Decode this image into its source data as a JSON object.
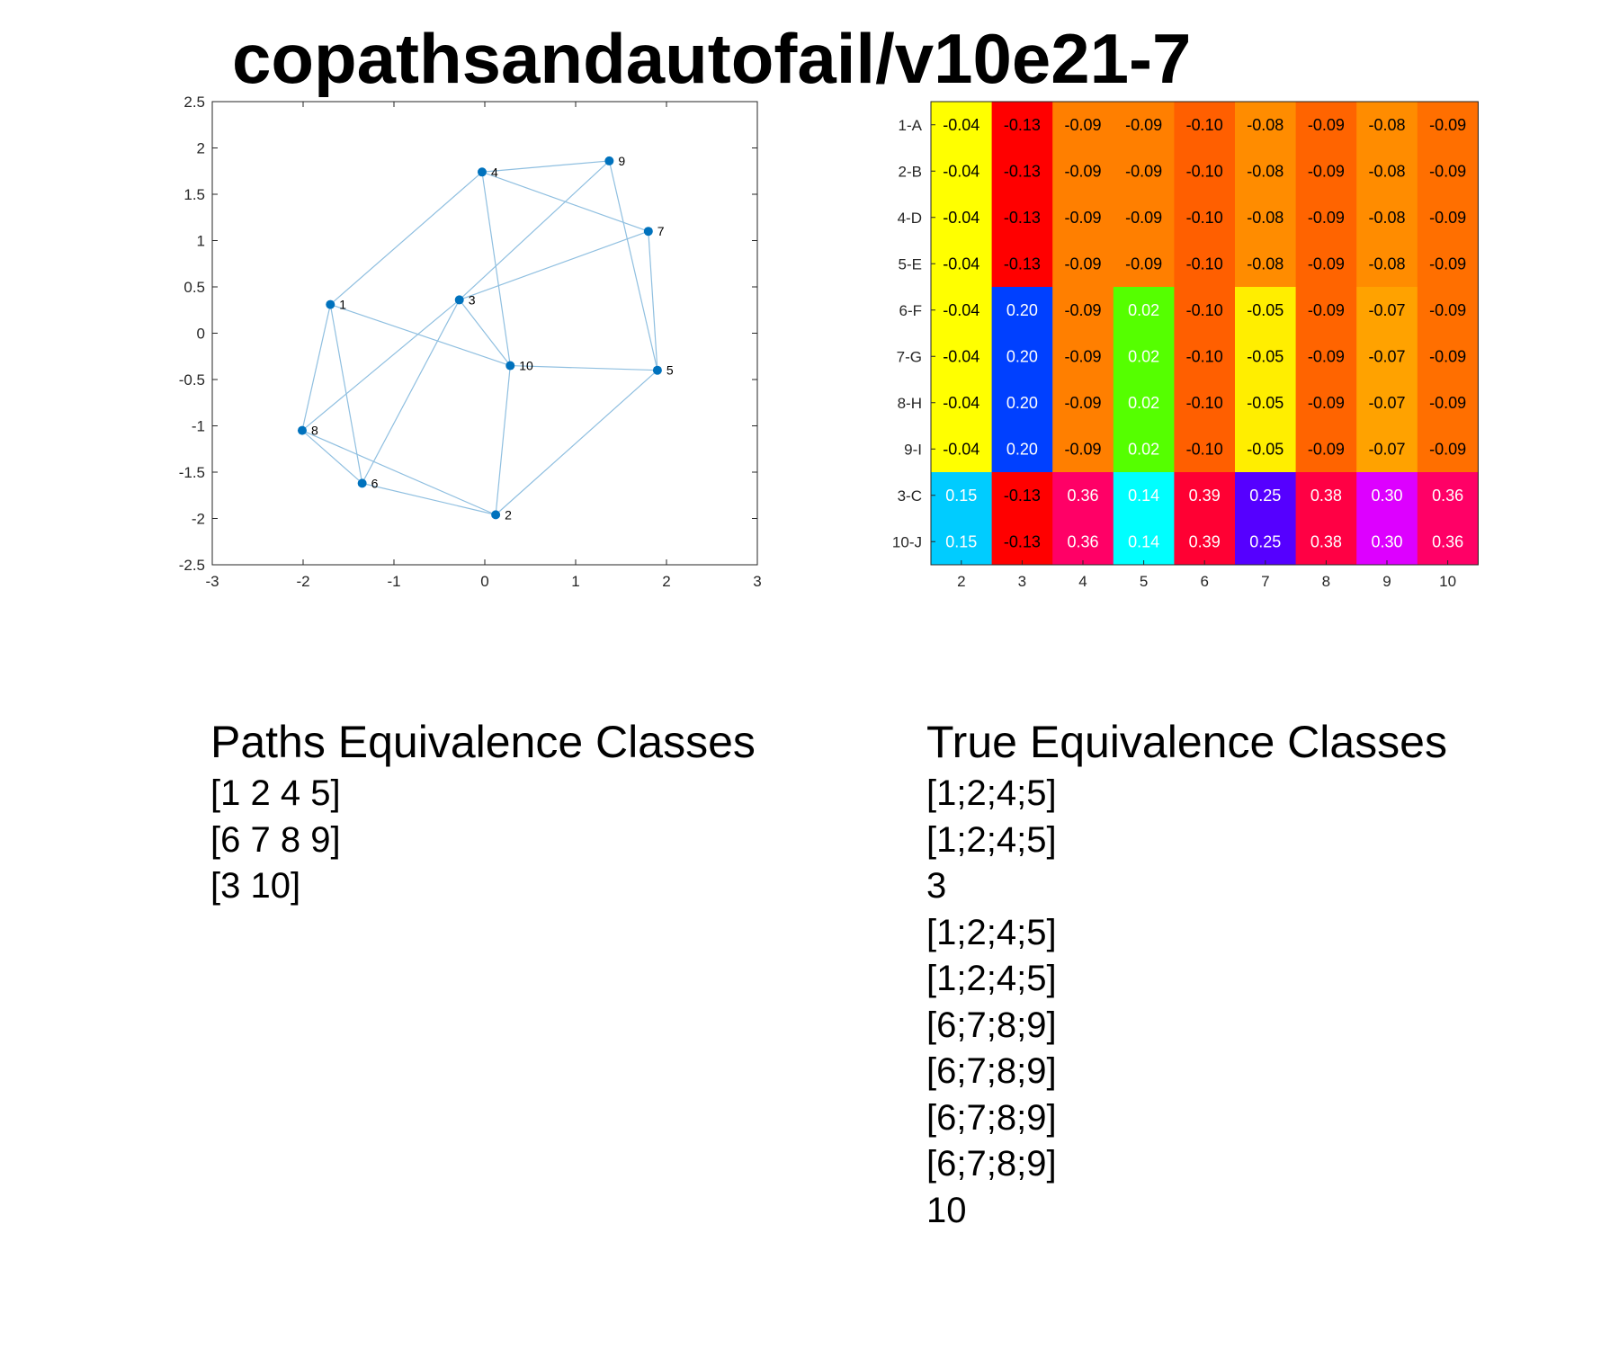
{
  "title": "copathsandautofail/v10e21-7",
  "chart_data": [
    {
      "type": "scatter",
      "subtype": "graph",
      "xlim": [
        -3,
        3
      ],
      "ylim": [
        -2.5,
        2.5
      ],
      "x_ticks": [
        "-3",
        "-2",
        "-1",
        "0",
        "1",
        "2",
        "3"
      ],
      "y_ticks": [
        "2.5",
        "2",
        "1.5",
        "1",
        "0.5",
        "0",
        "-0.5",
        "-1",
        "-1.5",
        "-2",
        "-2.5"
      ],
      "node_color": "#0072bd",
      "edge_color": "#8fbfe0",
      "nodes": [
        {
          "id": "1",
          "x": -1.7,
          "y": 0.31
        },
        {
          "id": "2",
          "x": 0.12,
          "y": -1.96
        },
        {
          "id": "3",
          "x": -0.28,
          "y": 0.36
        },
        {
          "id": "4",
          "x": -0.03,
          "y": 1.74
        },
        {
          "id": "5",
          "x": 1.9,
          "y": -0.4
        },
        {
          "id": "6",
          "x": -1.35,
          "y": -1.62
        },
        {
          "id": "7",
          "x": 1.8,
          "y": 1.1
        },
        {
          "id": "8",
          "x": -2.01,
          "y": -1.05
        },
        {
          "id": "9",
          "x": 1.37,
          "y": 1.86
        },
        {
          "id": "10",
          "x": 0.28,
          "y": -0.35
        }
      ],
      "edges": [
        [
          "1",
          "4"
        ],
        [
          "1",
          "8"
        ],
        [
          "1",
          "6"
        ],
        [
          "1",
          "10"
        ],
        [
          "4",
          "9"
        ],
        [
          "4",
          "7"
        ],
        [
          "4",
          "10"
        ],
        [
          "9",
          "3"
        ],
        [
          "9",
          "5"
        ],
        [
          "7",
          "3"
        ],
        [
          "7",
          "5"
        ],
        [
          "3",
          "8"
        ],
        [
          "3",
          "6"
        ],
        [
          "3",
          "10"
        ],
        [
          "10",
          "5"
        ],
        [
          "10",
          "2"
        ],
        [
          "8",
          "6"
        ],
        [
          "8",
          "2"
        ],
        [
          "6",
          "2"
        ],
        [
          "2",
          "5"
        ]
      ]
    },
    {
      "type": "heatmap",
      "rows": [
        "1-A",
        "2-B",
        "4-D",
        "5-E",
        "6-F",
        "7-G",
        "8-H",
        "9-I",
        "3-C",
        "10-J"
      ],
      "columns": [
        "2",
        "3",
        "4",
        "5",
        "6",
        "7",
        "8",
        "9",
        "10"
      ],
      "values": [
        [
          "-0.04",
          "-0.13",
          "-0.09",
          "-0.09",
          "-0.10",
          "-0.08",
          "-0.09",
          "-0.08",
          "-0.09"
        ],
        [
          "-0.04",
          "-0.13",
          "-0.09",
          "-0.09",
          "-0.10",
          "-0.08",
          "-0.09",
          "-0.08",
          "-0.09"
        ],
        [
          "-0.04",
          "-0.13",
          "-0.09",
          "-0.09",
          "-0.10",
          "-0.08",
          "-0.09",
          "-0.08",
          "-0.09"
        ],
        [
          "-0.04",
          "-0.13",
          "-0.09",
          "-0.09",
          "-0.10",
          "-0.08",
          "-0.09",
          "-0.08",
          "-0.09"
        ],
        [
          "-0.04",
          "0.20",
          "-0.09",
          "0.02",
          "-0.10",
          "-0.05",
          "-0.09",
          "-0.07",
          "-0.09"
        ],
        [
          "-0.04",
          "0.20",
          "-0.09",
          "0.02",
          "-0.10",
          "-0.05",
          "-0.09",
          "-0.07",
          "-0.09"
        ],
        [
          "-0.04",
          "0.20",
          "-0.09",
          "0.02",
          "-0.10",
          "-0.05",
          "-0.09",
          "-0.07",
          "-0.09"
        ],
        [
          "-0.04",
          "0.20",
          "-0.09",
          "0.02",
          "-0.10",
          "-0.05",
          "-0.09",
          "-0.07",
          "-0.09"
        ],
        [
          "0.15",
          "-0.13",
          "0.36",
          "0.14",
          "0.39",
          "0.25",
          "0.38",
          "0.30",
          "0.36"
        ],
        [
          "0.15",
          "-0.13",
          "0.36",
          "0.14",
          "0.39",
          "0.25",
          "0.38",
          "0.30",
          "0.36"
        ]
      ],
      "colors": [
        [
          "#ffff00",
          "#ff0000",
          "#ff7f00",
          "#ff7f00",
          "#ff5f00",
          "#ff8c00",
          "#ff6400",
          "#ff8c00",
          "#ff6f00"
        ],
        [
          "#ffff00",
          "#ff0000",
          "#ff7f00",
          "#ff7f00",
          "#ff5f00",
          "#ff8c00",
          "#ff6400",
          "#ff8c00",
          "#ff6f00"
        ],
        [
          "#ffff00",
          "#ff0000",
          "#ff7f00",
          "#ff7f00",
          "#ff5f00",
          "#ff8c00",
          "#ff6400",
          "#ff8c00",
          "#ff6f00"
        ],
        [
          "#ffff00",
          "#ff0000",
          "#ff7f00",
          "#ff7f00",
          "#ff5f00",
          "#ff8c00",
          "#ff6400",
          "#ff8c00",
          "#ff6f00"
        ],
        [
          "#ffff00",
          "#0040ff",
          "#ff7f00",
          "#55ff00",
          "#ff5f00",
          "#ffee00",
          "#ff6400",
          "#ffa200",
          "#ff6f00"
        ],
        [
          "#ffff00",
          "#0040ff",
          "#ff7f00",
          "#55ff00",
          "#ff5f00",
          "#ffee00",
          "#ff6400",
          "#ffa200",
          "#ff6f00"
        ],
        [
          "#ffff00",
          "#0040ff",
          "#ff7f00",
          "#55ff00",
          "#ff5f00",
          "#ffee00",
          "#ff6400",
          "#ffa200",
          "#ff6f00"
        ],
        [
          "#ffff00",
          "#0040ff",
          "#ff7f00",
          "#55ff00",
          "#ff5f00",
          "#ffee00",
          "#ff6400",
          "#ffa200",
          "#ff6f00"
        ],
        [
          "#00ccff",
          "#ff0000",
          "#ff0066",
          "#00ffff",
          "#ff0033",
          "#5500ff",
          "#ff0044",
          "#dd00ff",
          "#ff0066"
        ],
        [
          "#00ccff",
          "#ff0000",
          "#ff0066",
          "#00ffff",
          "#ff0033",
          "#5500ff",
          "#ff0044",
          "#dd00ff",
          "#ff0066"
        ]
      ],
      "text_colors": [
        [
          "#000000",
          "#000000",
          "#000000",
          "#000000",
          "#000000",
          "#000000",
          "#000000",
          "#000000",
          "#000000"
        ],
        [
          "#000000",
          "#000000",
          "#000000",
          "#000000",
          "#000000",
          "#000000",
          "#000000",
          "#000000",
          "#000000"
        ],
        [
          "#000000",
          "#000000",
          "#000000",
          "#000000",
          "#000000",
          "#000000",
          "#000000",
          "#000000",
          "#000000"
        ],
        [
          "#000000",
          "#000000",
          "#000000",
          "#000000",
          "#000000",
          "#000000",
          "#000000",
          "#000000",
          "#000000"
        ],
        [
          "#000000",
          "#ffffff",
          "#000000",
          "#ffffff",
          "#000000",
          "#000000",
          "#000000",
          "#000000",
          "#000000"
        ],
        [
          "#000000",
          "#ffffff",
          "#000000",
          "#ffffff",
          "#000000",
          "#000000",
          "#000000",
          "#000000",
          "#000000"
        ],
        [
          "#000000",
          "#ffffff",
          "#000000",
          "#ffffff",
          "#000000",
          "#000000",
          "#000000",
          "#000000",
          "#000000"
        ],
        [
          "#000000",
          "#ffffff",
          "#000000",
          "#ffffff",
          "#000000",
          "#000000",
          "#000000",
          "#000000",
          "#000000"
        ],
        [
          "#ffffff",
          "#000000",
          "#ffffff",
          "#ffffff",
          "#ffffff",
          "#ffffff",
          "#ffffff",
          "#ffffff",
          "#ffffff"
        ],
        [
          "#ffffff",
          "#000000",
          "#ffffff",
          "#ffffff",
          "#ffffff",
          "#ffffff",
          "#ffffff",
          "#ffffff",
          "#ffffff"
        ]
      ]
    }
  ],
  "paths_panel": {
    "title": "Paths Equivalence Classes",
    "lines": [
      "[1 2 4 5]",
      "[6 7 8 9]",
      "[3 10]"
    ]
  },
  "true_panel": {
    "title": "True Equivalence Classes",
    "lines": [
      "[1;2;4;5]",
      "[1;2;4;5]",
      "3",
      "[1;2;4;5]",
      "[1;2;4;5]",
      "[6;7;8;9]",
      "[6;7;8;9]",
      "[6;7;8;9]",
      "[6;7;8;9]",
      "10"
    ]
  }
}
